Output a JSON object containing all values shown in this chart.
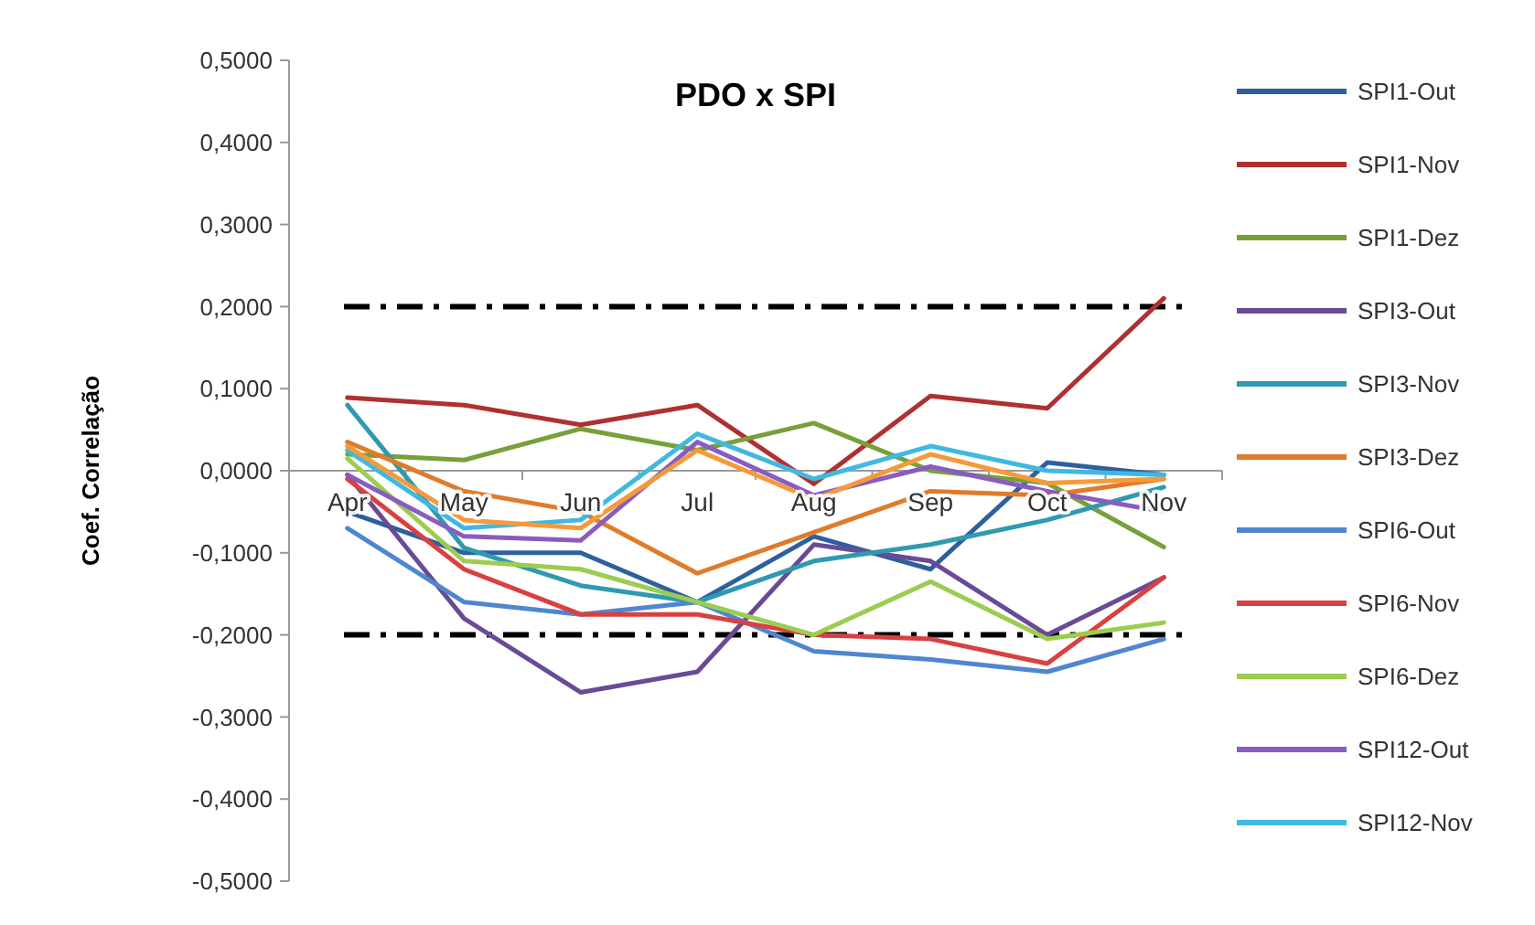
{
  "chart_data": {
    "type": "line",
    "title": "PDO x SPI",
    "ylabel": "Coef. Correlação",
    "categories": [
      "Apr",
      "May",
      "Jun",
      "Jul",
      "Aug",
      "Sep",
      "Oct",
      "Nov"
    ],
    "ylim": [
      -0.5,
      0.5
    ],
    "yticks": [
      {
        "value": -0.5,
        "label": "-0,5000"
      },
      {
        "value": -0.4,
        "label": "-0,4000"
      },
      {
        "value": -0.3,
        "label": "-0,3000"
      },
      {
        "value": -0.2,
        "label": "-0,2000"
      },
      {
        "value": -0.1,
        "label": "-0,1000"
      },
      {
        "value": 0,
        "label": "0,0000"
      },
      {
        "value": 0.1,
        "label": "0,1000"
      },
      {
        "value": 0.2,
        "label": "0,2000"
      },
      {
        "value": 0.3,
        "label": "0,3000"
      },
      {
        "value": 0.4,
        "label": "0,4000"
      },
      {
        "value": 0.5,
        "label": "0,5000"
      }
    ],
    "grid": false,
    "legend": "right",
    "marker": "none",
    "line_style": "solid",
    "ref_lines": [
      {
        "axis": "y",
        "value": 0.2,
        "color": "#000000",
        "line_style": "dashdot"
      },
      {
        "axis": "y",
        "value": -0.2,
        "color": "#000000",
        "line_style": "dashdot"
      }
    ],
    "series": [
      {
        "name": "SPI1-Out",
        "color": "#2e5f9e",
        "values": [
          -0.05,
          -0.1,
          -0.1,
          -0.16,
          -0.08,
          -0.12,
          0.01,
          -0.005
        ]
      },
      {
        "name": "SPI1-Nov",
        "color": "#b03030",
        "values": [
          0.089,
          0.08,
          0.056,
          0.08,
          -0.016,
          0.091,
          0.076,
          0.21
        ]
      },
      {
        "name": "SPI1-Dez",
        "color": "#77a03a",
        "values": [
          0.02,
          0.013,
          0.051,
          0.025,
          0.058,
          0.0,
          -0.015,
          -0.093
        ]
      },
      {
        "name": "SPI3-Out",
        "color": "#6a4a96",
        "values": [
          -0.005,
          -0.18,
          -0.27,
          -0.245,
          -0.09,
          -0.11,
          -0.2,
          -0.13
        ]
      },
      {
        "name": "SPI3-Nov",
        "color": "#2e9ab0",
        "values": [
          0.08,
          -0.094,
          -0.14,
          -0.16,
          -0.11,
          -0.09,
          -0.06,
          -0.02
        ]
      },
      {
        "name": "SPI3-Dez",
        "color": "#e07b2a",
        "values": [
          0.035,
          -0.025,
          -0.05,
          -0.125,
          -0.075,
          -0.025,
          -0.03,
          -0.01
        ]
      },
      {
        "name": "SPI6-Out",
        "color": "#4f86d0",
        "values": [
          -0.07,
          -0.16,
          -0.175,
          -0.16,
          -0.22,
          -0.23,
          -0.245,
          -0.205
        ]
      },
      {
        "name": "SPI6-Nov",
        "color": "#d94040",
        "values": [
          -0.01,
          -0.12,
          -0.175,
          -0.175,
          -0.2,
          -0.205,
          -0.235,
          -0.13
        ]
      },
      {
        "name": "SPI6-Dez",
        "color": "#9ccc50",
        "values": [
          0.015,
          -0.11,
          -0.12,
          -0.16,
          -0.2,
          -0.135,
          -0.205,
          -0.185
        ]
      },
      {
        "name": "SPI12-Out",
        "color": "#8a5cc0",
        "values": [
          -0.005,
          -0.08,
          -0.085,
          0.035,
          -0.03,
          0.005,
          -0.025,
          -0.05
        ]
      },
      {
        "name": "SPI12-Nov",
        "color": "#40b8e0",
        "values": [
          0.025,
          -0.07,
          -0.06,
          0.045,
          -0.01,
          0.03,
          0.0,
          -0.005
        ]
      },
      {
        "color": "#f59a3a",
        "values": [
          0.03,
          -0.06,
          -0.07,
          0.025,
          -0.035,
          0.02,
          -0.015,
          -0.01
        ]
      }
    ]
  }
}
